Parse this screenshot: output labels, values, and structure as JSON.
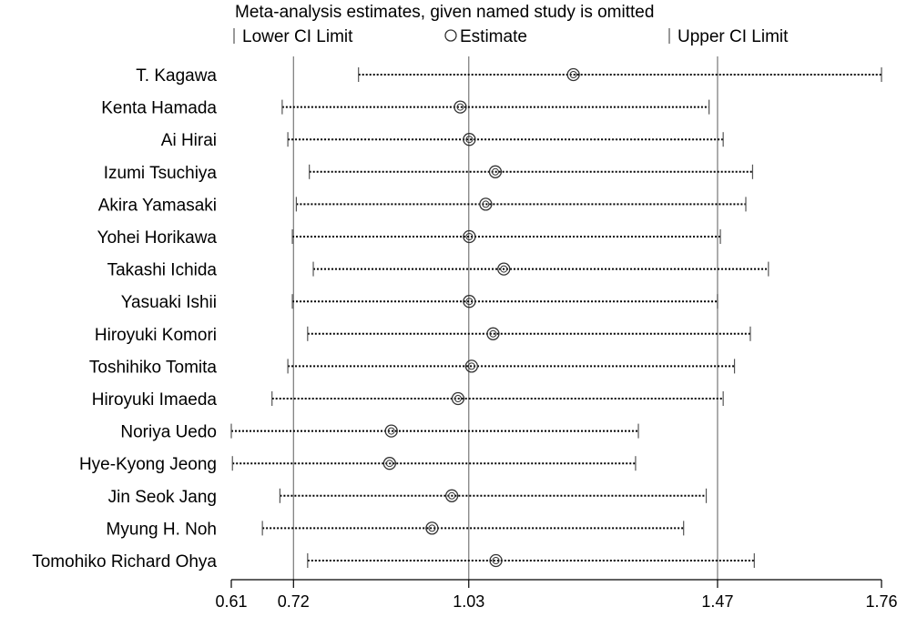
{
  "chart_data": {
    "type": "forest",
    "title": "Meta-analysis estimates, given named study is omitted",
    "legend": {
      "lower": "Lower CI Limit",
      "estimate": "Estimate",
      "upper": "Upper CI Limit",
      "placement": "top"
    },
    "xlim": [
      0.61,
      1.76
    ],
    "ticks": [
      {
        "value": 0.61,
        "label": "0.61"
      },
      {
        "value": 0.72,
        "label": "0.72"
      },
      {
        "value": 1.03,
        "label": "1.03"
      },
      {
        "value": 1.47,
        "label": "1.47"
      },
      {
        "value": 1.76,
        "label": "1.76"
      }
    ],
    "reference_lines": [
      0.72,
      1.03,
      1.47
    ],
    "studies": [
      {
        "name": "T. Kagawa",
        "lower": 0.835,
        "estimate": 1.215,
        "upper": 1.76
      },
      {
        "name": "Kenta Hamada",
        "lower": 0.7,
        "estimate": 1.015,
        "upper": 1.455
      },
      {
        "name": "Ai Hirai",
        "lower": 0.71,
        "estimate": 1.031,
        "upper": 1.48
      },
      {
        "name": "Izumi Tsuchiya",
        "lower": 0.748,
        "estimate": 1.077,
        "upper": 1.532
      },
      {
        "name": "Akira Yamasaki",
        "lower": 0.725,
        "estimate": 1.06,
        "upper": 1.52
      },
      {
        "name": "Yohei Horikawa",
        "lower": 0.718,
        "estimate": 1.031,
        "upper": 1.475
      },
      {
        "name": "Takashi Ichida",
        "lower": 0.755,
        "estimate": 1.092,
        "upper": 1.56
      },
      {
        "name": "Yasuaki Ishii",
        "lower": 0.718,
        "estimate": 1.031,
        "upper": 1.47
      },
      {
        "name": "Hiroyuki Komori",
        "lower": 0.745,
        "estimate": 1.073,
        "upper": 1.528
      },
      {
        "name": "Toshihiko Tomita",
        "lower": 0.71,
        "estimate": 1.035,
        "upper": 1.5
      },
      {
        "name": "Hiroyuki Imaeda",
        "lower": 0.682,
        "estimate": 1.011,
        "upper": 1.48
      },
      {
        "name": "Noriya Uedo",
        "lower": 0.61,
        "estimate": 0.893,
        "upper": 1.33
      },
      {
        "name": "Hye-Kyong Jeong",
        "lower": 0.612,
        "estimate": 0.89,
        "upper": 1.325
      },
      {
        "name": "Jin Seok Jang",
        "lower": 0.696,
        "estimate": 1.0,
        "upper": 1.45
      },
      {
        "name": "Myung H. Noh",
        "lower": 0.665,
        "estimate": 0.965,
        "upper": 1.41
      },
      {
        "name": "Tomohiko Richard Ohya",
        "lower": 0.745,
        "estimate": 1.078,
        "upper": 1.535
      }
    ]
  }
}
